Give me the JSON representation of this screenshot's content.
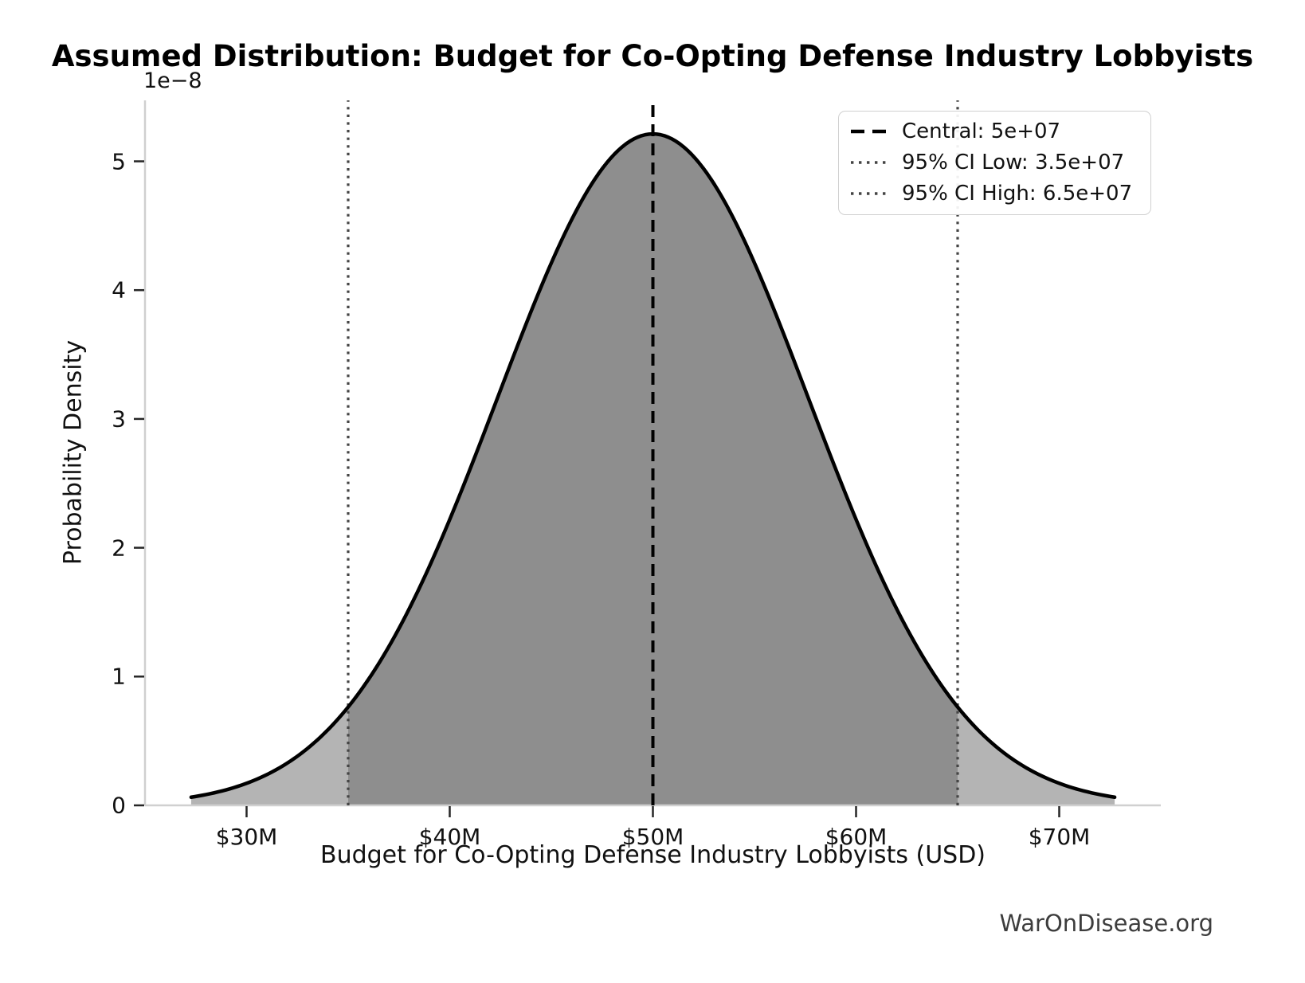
{
  "chart_data": {
    "type": "area",
    "title": "Assumed Distribution: Budget for Co-Opting Defense Industry Lobbyists",
    "xlabel": "Budget for Co-Opting Defense Industry Lobbyists (USD)",
    "ylabel": "Probability Density",
    "y_offset_label": "1e−8",
    "watermark": "WarOnDisease.org",
    "distribution": {
      "shape": "normal",
      "central": 50000000,
      "ci_low": 35000000,
      "ci_high": 65000000,
      "ci_level": "95%",
      "sigma": 7653061,
      "peak_density": 5.2126e-08,
      "curve_extent_sigma": 2.97
    },
    "xlim": [
      25000000,
      75000000
    ],
    "ylim": [
      0,
      5.4732e-08
    ],
    "x_ticks": [
      {
        "value": 30000000,
        "label": "$30M"
      },
      {
        "value": 40000000,
        "label": "$40M"
      },
      {
        "value": 50000000,
        "label": "$50M"
      },
      {
        "value": 60000000,
        "label": "$60M"
      },
      {
        "value": 70000000,
        "label": "$70M"
      }
    ],
    "y_ticks": [
      {
        "value": 0,
        "label": "0"
      },
      {
        "value": 1e-08,
        "label": "1"
      },
      {
        "value": 2e-08,
        "label": "2"
      },
      {
        "value": 3e-08,
        "label": "3"
      },
      {
        "value": 4e-08,
        "label": "4"
      },
      {
        "value": 5e-08,
        "label": "5"
      }
    ],
    "grid": false,
    "legend_position": "upper right",
    "legend": [
      {
        "label": "Central: 5e+07",
        "style": "dashed",
        "color": "#000000"
      },
      {
        "label": "95% CI Low: 3.5e+07",
        "style": "dotted",
        "color": "#444444"
      },
      {
        "label": "95% CI High: 6.5e+07",
        "style": "dotted",
        "color": "#444444"
      }
    ],
    "colors": {
      "curve": "#000000",
      "fill_tail": "#b4b4b4",
      "fill_ci": "#8e8e8e",
      "central_line": "#000000",
      "ci_line": "#444444",
      "spine": "#d0d0d0",
      "tick": "#262626"
    }
  }
}
